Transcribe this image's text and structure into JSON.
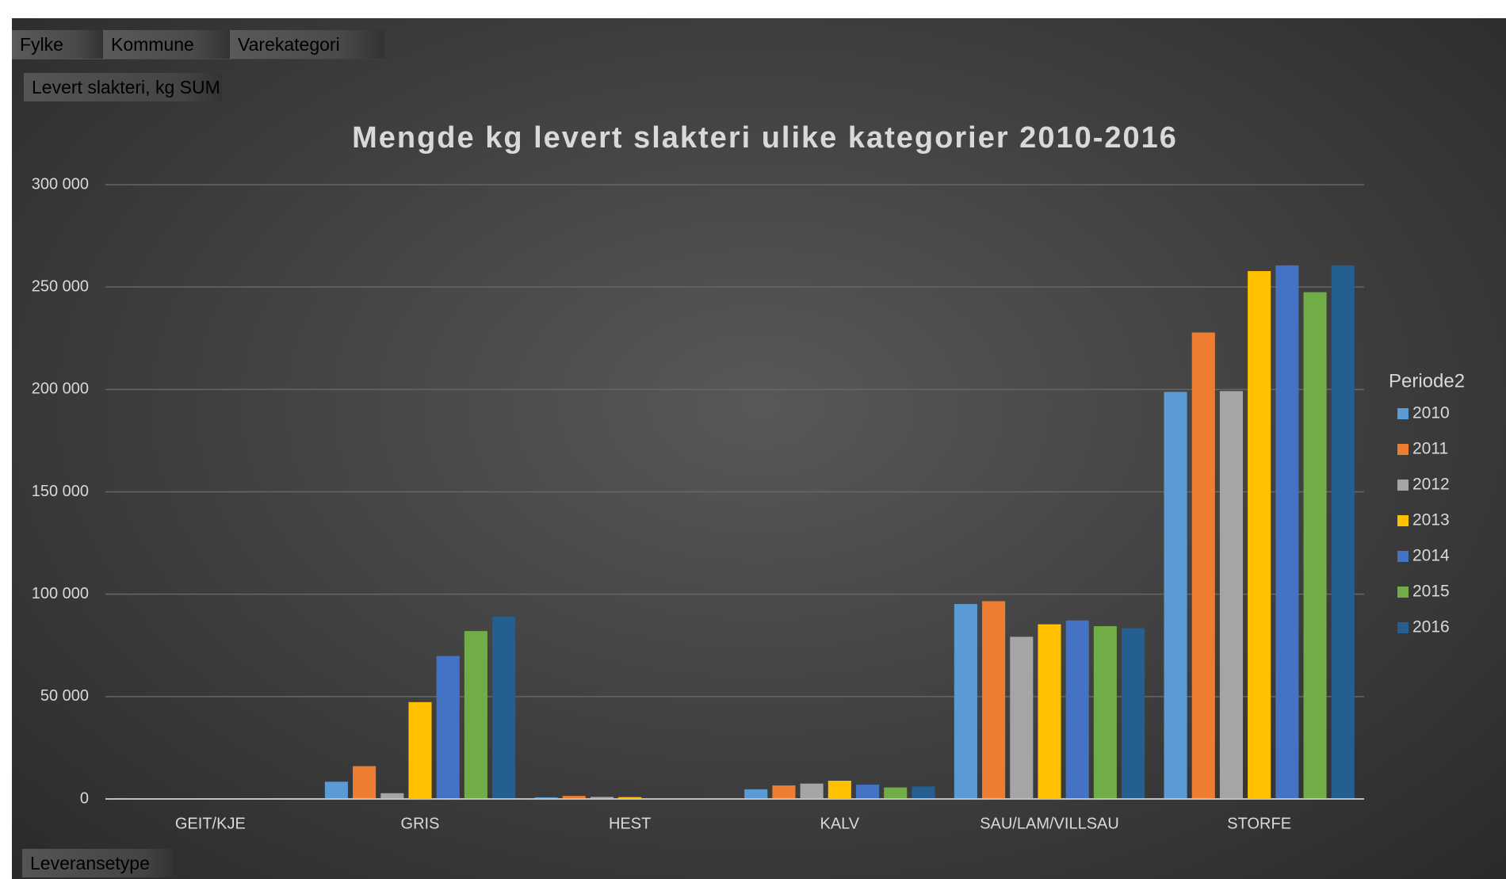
{
  "pivot_fields": {
    "filters": [
      "Fylke",
      "Kommune",
      "Varekategori"
    ],
    "values": "Levert slakteri, kg SUM",
    "rows": "Leveransetype"
  },
  "chart_data": {
    "type": "bar",
    "title": "Mengde kg levert slakteri ulike kategorier  2010-2016",
    "legend_title": "Periode2",
    "legend": "right",
    "grid": true,
    "categories": [
      "GEIT/KJE",
      "GRIS",
      "HEST",
      "KALV",
      "SAU/LAM/VILLSAU",
      "STORFE"
    ],
    "series": [
      {
        "name": "2010",
        "color": "#5b9bd5",
        "values": [
          400,
          8400,
          800,
          4700,
          95200,
          198800
        ]
      },
      {
        "name": "2011",
        "color": "#ed7d31",
        "values": [
          300,
          16000,
          1500,
          6600,
          96600,
          227800
        ]
      },
      {
        "name": "2012",
        "color": "#a5a5a5",
        "values": [
          100,
          2800,
          1000,
          7500,
          79200,
          199200
        ]
      },
      {
        "name": "2013",
        "color": "#ffc000",
        "values": [
          300,
          47300,
          900,
          8900,
          85300,
          257800
        ]
      },
      {
        "name": "2014",
        "color": "#4472c4",
        "values": [
          100,
          69800,
          400,
          7000,
          87200,
          260600
        ]
      },
      {
        "name": "2015",
        "color": "#70ad47",
        "values": [
          200,
          82000,
          0,
          5600,
          84400,
          247500
        ]
      },
      {
        "name": "2016",
        "color": "#255e91",
        "values": [
          100,
          89000,
          0,
          6100,
          83400,
          260600
        ]
      }
    ],
    "ylim": [
      0,
      300000
    ],
    "yticks": [
      0,
      {
        "value": 50000,
        "label": "50 000"
      },
      {
        "value": 100000,
        "label": "100 000"
      },
      {
        "value": 150000,
        "label": "150 000"
      },
      {
        "value": 200000,
        "label": "200 000"
      },
      {
        "value": 250000,
        "label": "250 000"
      },
      {
        "value": 300000,
        "label": "300 000"
      }
    ]
  }
}
